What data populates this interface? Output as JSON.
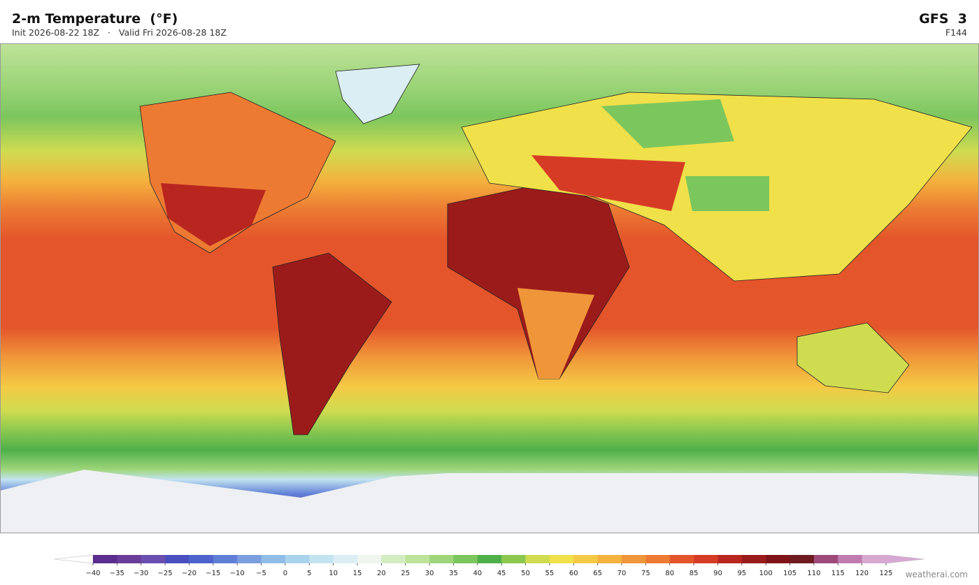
{
  "header": {
    "title": "2-m Temperature  (°F)",
    "init": "Init 2026-08-22 18Z",
    "separator": "·",
    "valid": "Valid Fri 2026-08-28 18Z",
    "model": "GFS  3",
    "forecast_hour": "F144"
  },
  "colorbar": {
    "ticks": [
      {
        "value": -40,
        "label": "−40"
      },
      {
        "value": -35,
        "label": "−35"
      },
      {
        "value": -30,
        "label": "−30"
      },
      {
        "value": -25,
        "label": "−25"
      },
      {
        "value": -20,
        "label": "−20"
      },
      {
        "value": -15,
        "label": "−15"
      },
      {
        "value": -10,
        "label": "−10"
      },
      {
        "value": -5,
        "label": "−5"
      },
      0,
      5,
      10,
      15,
      20,
      25,
      30,
      35,
      40,
      45,
      50,
      55,
      60,
      65,
      70,
      75,
      80,
      85,
      90,
      95,
      100,
      105,
      110,
      115,
      120,
      125
    ],
    "colors": [
      "#5b2d8e",
      "#6a3d9a",
      "#6b4fb0",
      "#4a4fc0",
      "#4f63cc",
      "#5f7fd6",
      "#7b9ede",
      "#8fbde6",
      "#a9d2ec",
      "#c3e3f0",
      "#dbeef3",
      "#eef6ee",
      "#d3ecc0",
      "#bde39a",
      "#9fd57a",
      "#7cc65e",
      "#4fb04a",
      "#8cc850",
      "#cfdc50",
      "#f0e04a",
      "#f5c945",
      "#f4b23e",
      "#f0963a",
      "#ec7a33",
      "#e4552b",
      "#d63c25",
      "#b8261f",
      "#9b1b1b",
      "#7e1418",
      "#6e1a1e",
      "#9e4a7a",
      "#c07bb0",
      "#d7a8d0"
    ],
    "under_color": "#ffffff",
    "over_color": "#d8a8d4"
  },
  "credit": "weatherai.com"
}
